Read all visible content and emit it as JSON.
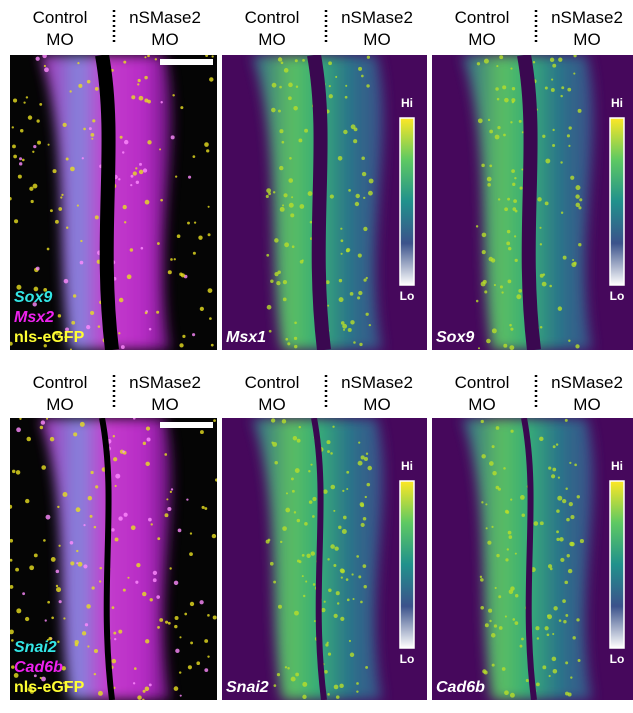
{
  "rows": [
    {
      "panels": [
        {
          "kind": "merge",
          "header_left": [
            "Control",
            "MO"
          ],
          "header_right": [
            "nSMase2",
            "MO"
          ],
          "labels": [
            {
              "text": "Sox9",
              "color": "#33e6e6",
              "italic": true
            },
            {
              "text": "Msx2",
              "color": "#ee22ee",
              "italic": true
            },
            {
              "text": "nls-eGFP",
              "color": "#ffff33",
              "italic": false
            }
          ],
          "scale_bar": true
        },
        {
          "kind": "heatmap",
          "header_left": [
            "Control",
            "MO"
          ],
          "header_right": [
            "nSMase2",
            "MO"
          ],
          "labels": [
            {
              "text": "Msx1",
              "color": "#ffffff",
              "italic": true
            }
          ],
          "colorbar": {
            "hi": "Hi",
            "lo": "Lo"
          }
        },
        {
          "kind": "heatmap",
          "header_left": [
            "Control",
            "MO"
          ],
          "header_right": [
            "nSMase2",
            "MO"
          ],
          "labels": [
            {
              "text": "Sox9",
              "color": "#ffffff",
              "italic": true
            }
          ],
          "colorbar": {
            "hi": "Hi",
            "lo": "Lo"
          }
        }
      ]
    },
    {
      "panels": [
        {
          "kind": "merge",
          "header_left": [
            "Control",
            "MO"
          ],
          "header_right": [
            "nSMase2",
            "MO"
          ],
          "labels": [
            {
              "text": "Snai2",
              "color": "#33e6e6",
              "italic": true
            },
            {
              "text": "Cad6b",
              "color": "#ee22ee",
              "italic": true
            },
            {
              "text": "nls-eGFP",
              "color": "#ffff33",
              "italic": false
            }
          ],
          "scale_bar": true
        },
        {
          "kind": "heatmap",
          "header_left": [
            "Control",
            "MO"
          ],
          "header_right": [
            "nSMase2",
            "MO"
          ],
          "labels": [
            {
              "text": "Snai2",
              "color": "#ffffff",
              "italic": true
            }
          ],
          "colorbar": {
            "hi": "Hi",
            "lo": "Lo"
          }
        },
        {
          "kind": "heatmap",
          "header_left": [
            "Control",
            "MO"
          ],
          "header_right": [
            "nSMase2",
            "MO"
          ],
          "labels": [
            {
              "text": "Cad6b",
              "color": "#ffffff",
              "italic": true
            }
          ],
          "colorbar": {
            "hi": "Hi",
            "lo": "Lo"
          }
        }
      ]
    }
  ]
}
